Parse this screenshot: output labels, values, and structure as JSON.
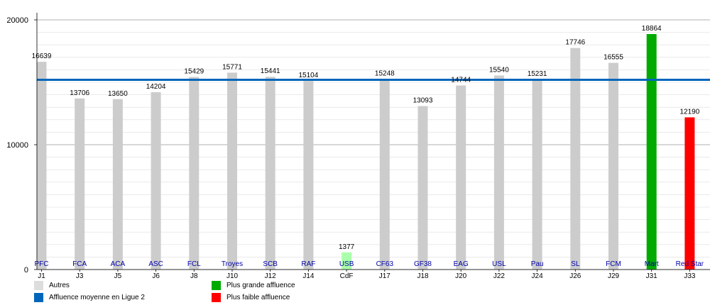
{
  "chart_data": {
    "type": "bar",
    "categories": [
      "J1",
      "J3",
      "J5",
      "J6",
      "J8",
      "J10",
      "J12",
      "J14",
      "CdF",
      "J17",
      "J18",
      "J20",
      "J22",
      "J24",
      "J26",
      "J29",
      "J31",
      "J33"
    ],
    "teams": [
      "PFC",
      "FCA",
      "ACA",
      "ASC",
      "FCL",
      "Troyes",
      "SCB",
      "RAF",
      "USB",
      "CF63",
      "GF38",
      "EAG",
      "USL",
      "Pau",
      "SL",
      "FCM",
      "Mart",
      "Red Star"
    ],
    "values": [
      16639,
      13706,
      13650,
      14204,
      15429,
      15771,
      15441,
      15104,
      1377,
      15248,
      13093,
      14744,
      15540,
      15231,
      17746,
      16555,
      18864,
      12190
    ],
    "bar_kinds": [
      "other",
      "other",
      "other",
      "other",
      "other",
      "other",
      "other",
      "other",
      "cup",
      "other",
      "other",
      "other",
      "other",
      "other",
      "other",
      "other",
      "max",
      "min"
    ],
    "value_labels": [
      "16639",
      "13706",
      "13650",
      "14204",
      "15429",
      "15771",
      "15441",
      "15104",
      "1377",
      "15248",
      "13093",
      "14744",
      "15540",
      "15231",
      "17746",
      "16555",
      "18864",
      "12190"
    ],
    "yticks": [
      0,
      10000,
      20000
    ],
    "ytick_labels": [
      "0",
      "10000",
      "20000"
    ],
    "ylim": [
      0,
      20000
    ],
    "average": 15200,
    "colors": {
      "other": "#cccccc",
      "cup": "#aaffaa",
      "max": "#00aa00",
      "min": "#ff0000",
      "average": "#0066bb",
      "grid": "#dddddd",
      "legend_other": "#dddddd"
    }
  },
  "legend": {
    "other": "Autres",
    "average": "Affluence moyenne en Ligue 2",
    "max": "Plus grande affluence",
    "min": "Plus faible affluence"
  }
}
